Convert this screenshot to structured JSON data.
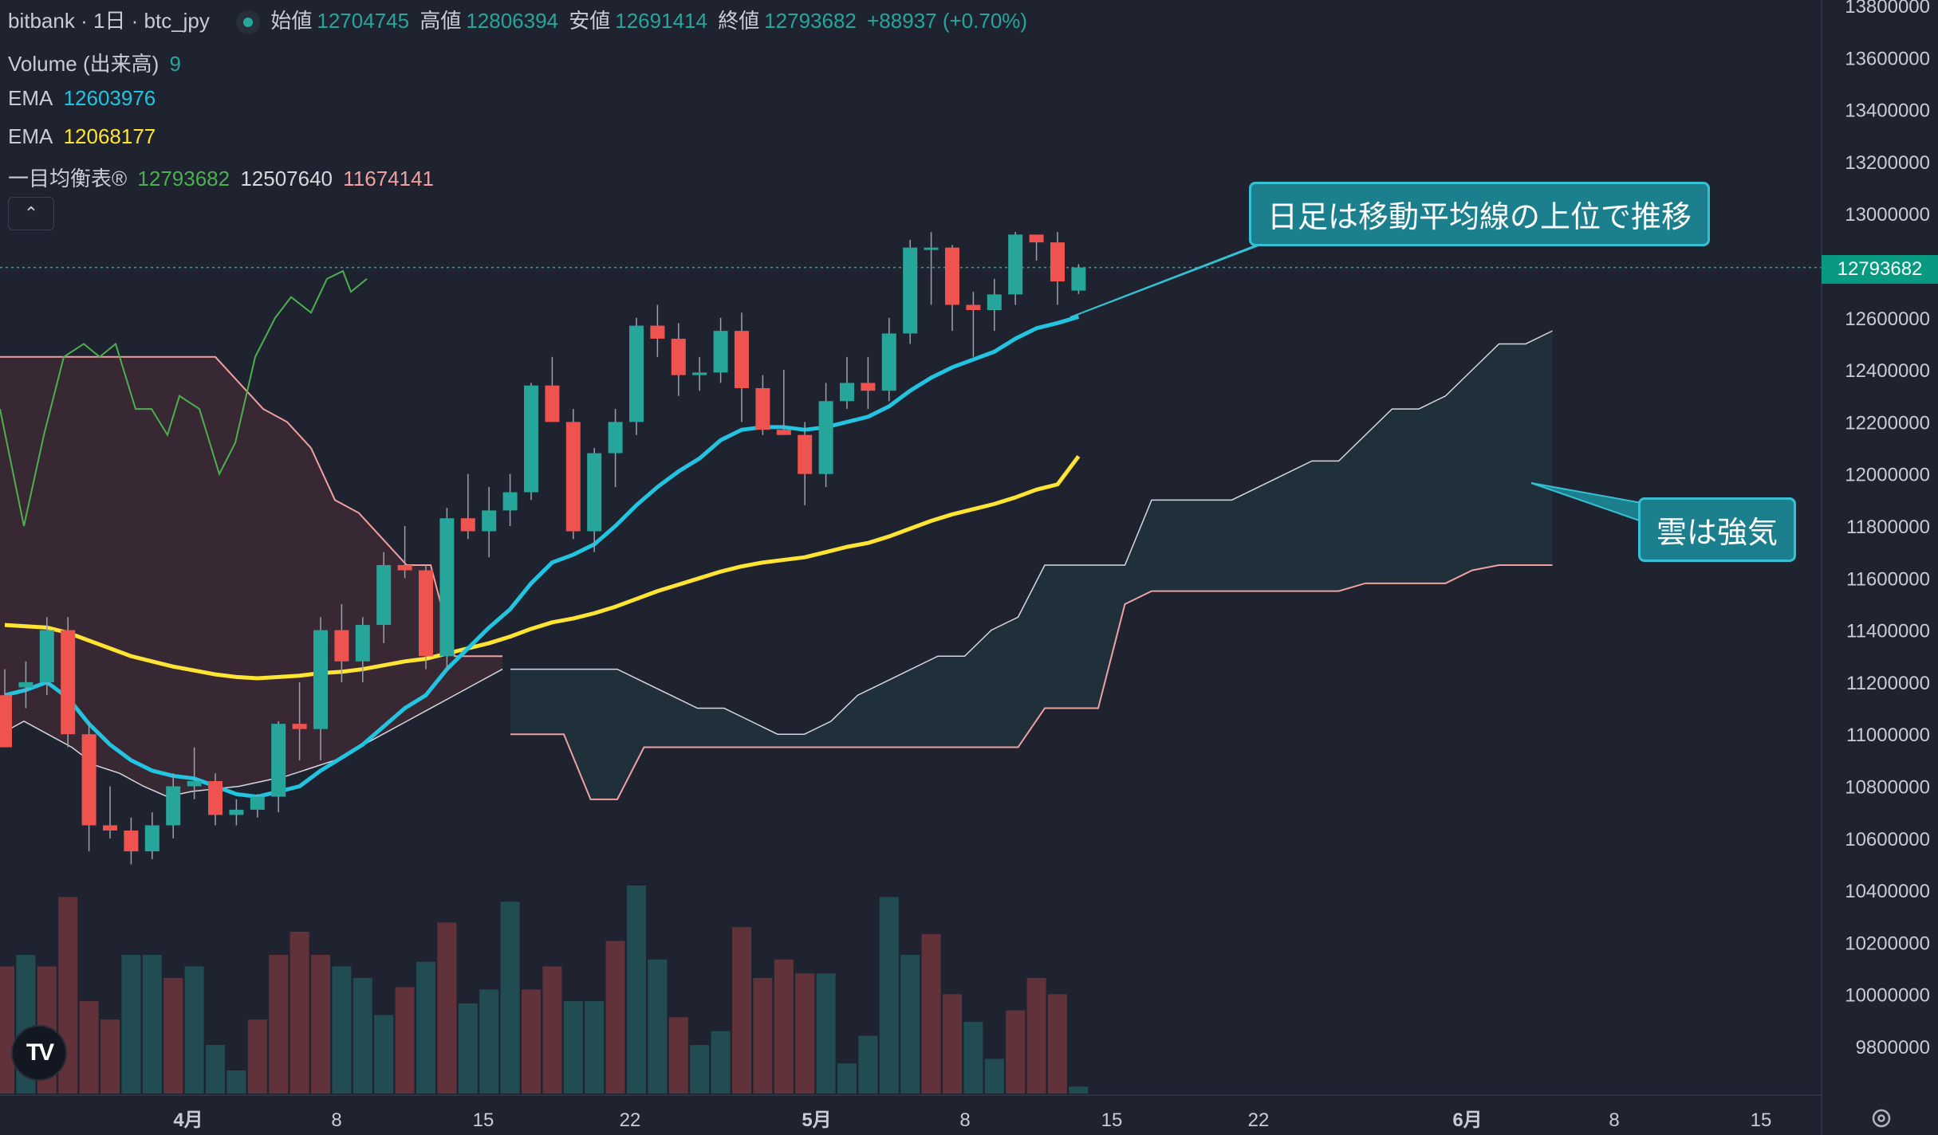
{
  "header": {
    "symbol": "bitbank · 1日 · btc_jpy",
    "open_label": "始値",
    "open_value": "12704745",
    "high_label": "高値",
    "high_value": "12806394",
    "low_label": "安値",
    "low_value": "12691414",
    "close_label": "終値",
    "close_value": "12793682",
    "change": "+88937 (+0.70%)"
  },
  "indicators": {
    "volume_label": "Volume (出来高)",
    "volume_value": "9",
    "ema1_label": "EMA",
    "ema1_value": "12603976",
    "ema2_label": "EMA",
    "ema2_value": "12068177",
    "ichimoku_label": "一目均衡表®",
    "ichimoku_v1": "12793682",
    "ichimoku_v2": "12507640",
    "ichimoku_v3": "11674141"
  },
  "annotations": {
    "top": "日足は移動平均線の上位で推移",
    "cloud": "雲は強気"
  },
  "colors": {
    "background": "#1f2330",
    "up": "#26a69a",
    "down": "#ef5350",
    "ema_fast": "#22c4e0",
    "ema_slow": "#ffe433",
    "chikou": "#4caf50",
    "callout": "#1b7f8e"
  },
  "logo": "TV",
  "chart_data": {
    "type": "candlestick",
    "price_axis_ticks": [
      "13800000",
      "13600000",
      "13400000",
      "13200000",
      "13000000",
      "12800000",
      "12600000",
      "12400000",
      "12200000",
      "12000000",
      "11800000",
      "11600000",
      "11400000",
      "11200000",
      "11000000",
      "10800000",
      "10600000",
      "10400000",
      "10200000",
      "10000000",
      "9800000"
    ],
    "date_axis_ticks": [
      "4月",
      "8",
      "15",
      "22",
      "5月",
      "8",
      "15",
      "22",
      "6月",
      "8",
      "15"
    ],
    "current_price_label": "12793682",
    "candles": [
      [
        11150000,
        11250000,
        10950000,
        10950000
      ],
      [
        11180000,
        11280000,
        11100000,
        11200000
      ],
      [
        11200000,
        11450000,
        11150000,
        11400000
      ],
      [
        11400000,
        11450000,
        10950000,
        11000000
      ],
      [
        11000000,
        11050000,
        10550000,
        10650000
      ],
      [
        10650000,
        10800000,
        10600000,
        10630000
      ],
      [
        10630000,
        10680000,
        10500000,
        10550000
      ],
      [
        10550000,
        10700000,
        10520000,
        10650000
      ],
      [
        10650000,
        10850000,
        10600000,
        10800000
      ],
      [
        10800000,
        10950000,
        10750000,
        10820000
      ],
      [
        10820000,
        10850000,
        10650000,
        10690000
      ],
      [
        10690000,
        10750000,
        10650000,
        10710000
      ],
      [
        10710000,
        10770000,
        10680000,
        10760000
      ],
      [
        10760000,
        11050000,
        10700000,
        11040000
      ],
      [
        11040000,
        11200000,
        10900000,
        11020000
      ],
      [
        11020000,
        11450000,
        10900000,
        11400000
      ],
      [
        11400000,
        11500000,
        11200000,
        11280000
      ],
      [
        11280000,
        11450000,
        11200000,
        11420000
      ],
      [
        11420000,
        11700000,
        11350000,
        11650000
      ],
      [
        11650000,
        11800000,
        11600000,
        11630000
      ],
      [
        11630000,
        11650000,
        11250000,
        11300000
      ],
      [
        11300000,
        11870000,
        11250000,
        11830000
      ],
      [
        11830000,
        12000000,
        11750000,
        11780000
      ],
      [
        11780000,
        11950000,
        11680000,
        11860000
      ],
      [
        11860000,
        12000000,
        11800000,
        11930000
      ],
      [
        11930000,
        12350000,
        11900000,
        12340000
      ],
      [
        12340000,
        12450000,
        12200000,
        12200000
      ],
      [
        12200000,
        12250000,
        11750000,
        11780000
      ],
      [
        11780000,
        12100000,
        11700000,
        12080000
      ],
      [
        12080000,
        12250000,
        11950000,
        12200000
      ],
      [
        12200000,
        12600000,
        12150000,
        12570000
      ],
      [
        12570000,
        12650000,
        12450000,
        12520000
      ],
      [
        12520000,
        12580000,
        12300000,
        12380000
      ],
      [
        12380000,
        12450000,
        12320000,
        12390000
      ],
      [
        12390000,
        12600000,
        12350000,
        12550000
      ],
      [
        12550000,
        12620000,
        12200000,
        12330000
      ],
      [
        12330000,
        12380000,
        12150000,
        12170000
      ],
      [
        12170000,
        12400000,
        12150000,
        12150000
      ],
      [
        12150000,
        12200000,
        11880000,
        12000000
      ],
      [
        12000000,
        12350000,
        11950000,
        12280000
      ],
      [
        12280000,
        12450000,
        12250000,
        12350000
      ],
      [
        12350000,
        12450000,
        12250000,
        12320000
      ],
      [
        12320000,
        12600000,
        12280000,
        12540000
      ],
      [
        12540000,
        12900000,
        12500000,
        12870000
      ],
      [
        12870000,
        12930000,
        12650000,
        12870000
      ],
      [
        12870000,
        12880000,
        12550000,
        12650000
      ],
      [
        12650000,
        12700000,
        12450000,
        12630000
      ],
      [
        12630000,
        12750000,
        12550000,
        12690000
      ],
      [
        12690000,
        12930000,
        12650000,
        12920000
      ],
      [
        12920000,
        12900000,
        12820000,
        12890000
      ],
      [
        12890000,
        12930000,
        12650000,
        12740000
      ],
      [
        12704745,
        12806394,
        12691414,
        12793682
      ]
    ],
    "ema_fast": [
      11150000,
      11170000,
      11200000,
      11140000,
      11040000,
      10960000,
      10900000,
      10860000,
      10840000,
      10830000,
      10800000,
      10770000,
      10760000,
      10780000,
      10800000,
      10860000,
      10910000,
      10960000,
      11030000,
      11100000,
      11150000,
      11250000,
      11330000,
      11410000,
      11480000,
      11580000,
      11660000,
      11690000,
      11730000,
      11800000,
      11880000,
      11950000,
      12010000,
      12060000,
      12130000,
      12170000,
      12180000,
      12180000,
      12170000,
      12180000,
      12200000,
      12220000,
      12260000,
      12320000,
      12370000,
      12410000,
      12440000,
      12470000,
      12520000,
      12560000,
      12580000,
      12603976
    ],
    "ema_slow": [
      11420000,
      11415000,
      11410000,
      11390000,
      11360000,
      11330000,
      11300000,
      11280000,
      11260000,
      11245000,
      11230000,
      11220000,
      11215000,
      11220000,
      11225000,
      11235000,
      11240000,
      11250000,
      11265000,
      11280000,
      11290000,
      11310000,
      11330000,
      11350000,
      11375000,
      11405000,
      11430000,
      11445000,
      11465000,
      11490000,
      11520000,
      11550000,
      11575000,
      11600000,
      11625000,
      11645000,
      11660000,
      11670000,
      11680000,
      11700000,
      11720000,
      11735000,
      11760000,
      11790000,
      11820000,
      11845000,
      11865000,
      11885000,
      11910000,
      11940000,
      11960000,
      12068177
    ],
    "volume": [
      {
        "v": 0.55,
        "d": 1
      },
      {
        "v": 0.6,
        "d": 0
      },
      {
        "v": 0.55,
        "d": 1
      },
      {
        "v": 0.85,
        "d": 1
      },
      {
        "v": 0.4,
        "d": 1
      },
      {
        "v": 0.32,
        "d": 1
      },
      {
        "v": 0.6,
        "d": 0
      },
      {
        "v": 0.6,
        "d": 0
      },
      {
        "v": 0.5,
        "d": 1
      },
      {
        "v": 0.55,
        "d": 0
      },
      {
        "v": 0.21,
        "d": 0
      },
      {
        "v": 0.1,
        "d": 0
      },
      {
        "v": 0.32,
        "d": 1
      },
      {
        "v": 0.6,
        "d": 1
      },
      {
        "v": 0.7,
        "d": 1
      },
      {
        "v": 0.6,
        "d": 1
      },
      {
        "v": 0.55,
        "d": 0
      },
      {
        "v": 0.5,
        "d": 0
      },
      {
        "v": 0.34,
        "d": 0
      },
      {
        "v": 0.46,
        "d": 1
      },
      {
        "v": 0.57,
        "d": 0
      },
      {
        "v": 0.74,
        "d": 1
      },
      {
        "v": 0.39,
        "d": 0
      },
      {
        "v": 0.45,
        "d": 0
      },
      {
        "v": 0.83,
        "d": 0
      },
      {
        "v": 0.45,
        "d": 1
      },
      {
        "v": 0.55,
        "d": 1
      },
      {
        "v": 0.4,
        "d": 0
      },
      {
        "v": 0.4,
        "d": 0
      },
      {
        "v": 0.66,
        "d": 1
      },
      {
        "v": 0.9,
        "d": 0
      },
      {
        "v": 0.58,
        "d": 0
      },
      {
        "v": 0.33,
        "d": 1
      },
      {
        "v": 0.21,
        "d": 0
      },
      {
        "v": 0.27,
        "d": 0
      },
      {
        "v": 0.72,
        "d": 1
      },
      {
        "v": 0.5,
        "d": 1
      },
      {
        "v": 0.58,
        "d": 1
      },
      {
        "v": 0.52,
        "d": 1
      },
      {
        "v": 0.52,
        "d": 0
      },
      {
        "v": 0.13,
        "d": 0
      },
      {
        "v": 0.25,
        "d": 0
      },
      {
        "v": 0.85,
        "d": 0
      },
      {
        "v": 0.6,
        "d": 0
      },
      {
        "v": 0.69,
        "d": 1
      },
      {
        "v": 0.43,
        "d": 1
      },
      {
        "v": 0.31,
        "d": 0
      },
      {
        "v": 0.15,
        "d": 0
      },
      {
        "v": 0.36,
        "d": 1
      },
      {
        "v": 0.5,
        "d": 1
      },
      {
        "v": 0.43,
        "d": 1
      },
      {
        "v": 0.03,
        "d": 0
      }
    ],
    "chikou": [
      [
        0,
        12250000
      ],
      [
        30,
        11800000
      ],
      [
        55,
        12150000
      ],
      [
        80,
        12450000
      ],
      [
        105,
        12500000
      ],
      [
        125,
        12450000
      ],
      [
        145,
        12500000
      ],
      [
        170,
        12250000
      ],
      [
        190,
        12250000
      ],
      [
        210,
        12150000
      ],
      [
        225,
        12300000
      ],
      [
        250,
        12250000
      ],
      [
        275,
        12000000
      ],
      [
        295,
        12120000
      ],
      [
        320,
        12450000
      ],
      [
        345,
        12600000
      ],
      [
        365,
        12680000
      ],
      [
        390,
        12620000
      ],
      [
        410,
        12750000
      ],
      [
        430,
        12780000
      ],
      [
        440,
        12700000
      ],
      [
        460,
        12750000
      ]
    ],
    "baseline_wide": [
      11000000,
      11050000,
      11000000,
      10950000,
      10880000,
      10850000,
      10800000,
      10760000,
      10780000,
      10790000,
      10800000,
      10820000,
      10840000,
      10870000,
      10900000,
      10950000,
      11000000,
      11050000,
      11100000,
      11150000,
      11200000,
      11250000
    ],
    "kijun": [
      12450000,
      12450000,
      12450000,
      12450000,
      12450000,
      12450000,
      12450000,
      12450000,
      12450000,
      12450000,
      12350000,
      12250000,
      12200000,
      12100000,
      11900000,
      11850000,
      11750000,
      11650000,
      11650000,
      11300000,
      11300000,
      11300000
    ],
    "tenkan": [
      10800000,
      10600000,
      10550000,
      10700000,
      10700000,
      10800000,
      10900000,
      11050000,
      11150000,
      11250000,
      11350000,
      11350000
    ],
    "cloud_upper": [
      11250000,
      11250000,
      11250000,
      11250000,
      11250000,
      11200000,
      11150000,
      11100000,
      11100000,
      11050000,
      11000000,
      11000000,
      11050000,
      11150000,
      11200000,
      11250000,
      11300000,
      11300000,
      11400000,
      11450000,
      11650000,
      11650000,
      11650000,
      11650000,
      11900000,
      11900000,
      11900000,
      11900000,
      11950000,
      12000000,
      12050000,
      12050000,
      12150000,
      12250000,
      12250000,
      12300000,
      12400000,
      12500000,
      12500000,
      12550000
    ],
    "cloud_lower": [
      11000000,
      11000000,
      11000000,
      10750000,
      10750000,
      10950000,
      10950000,
      10950000,
      10950000,
      10950000,
      10950000,
      10950000,
      10950000,
      10950000,
      10950000,
      10950000,
      10950000,
      10950000,
      10950000,
      10950000,
      11100000,
      11100000,
      11100000,
      11500000,
      11550000,
      11550000,
      11550000,
      11550000,
      11550000,
      11550000,
      11550000,
      11550000,
      11580000,
      11580000,
      11580000,
      11580000,
      11630000,
      11650000,
      11650000,
      11650000
    ]
  }
}
